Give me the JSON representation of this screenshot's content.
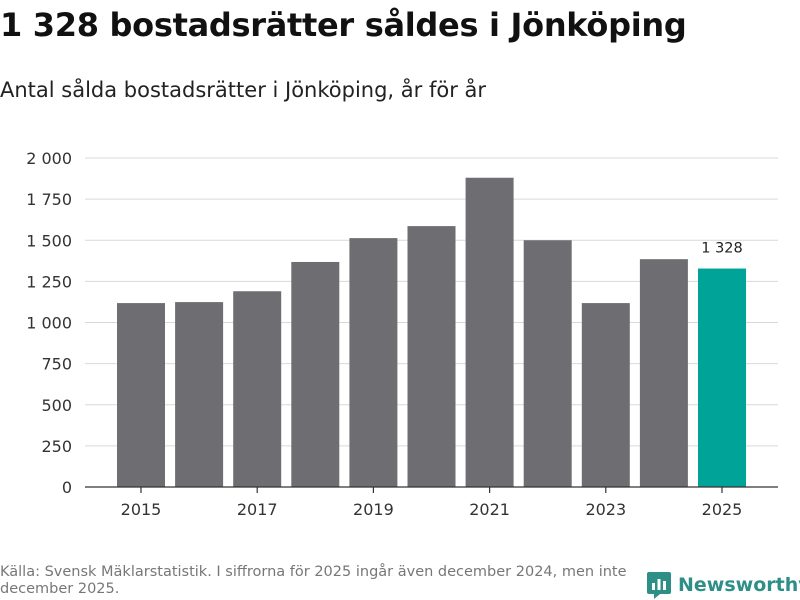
{
  "title": "1 328 bostadsrätter såldes i Jönköping",
  "subtitle": "Antal sålda bostadsrätter i Jönköping, år för år",
  "source": "Källa: Svensk Mäklarstatistik. I siffrorna för 2025 ingår även december 2024, men inte december 2025.",
  "brand": {
    "name": "Newsworthy",
    "icon": "newsworthy-logo-icon"
  },
  "colors": {
    "bar": "#6e6d72",
    "highlight": "#00a398",
    "grid": "#d9d9d9",
    "axis": "#333333"
  },
  "chart_data": {
    "type": "bar",
    "title": "1 328 bostadsrätter såldes i Jönköping",
    "subtitle": "Antal sålda bostadsrätter i Jönköping, år för år",
    "xlabel": "",
    "ylabel": "",
    "categories": [
      "2015",
      "2016",
      "2017",
      "2018",
      "2019",
      "2020",
      "2021",
      "2022",
      "2023",
      "2024",
      "2025"
    ],
    "values": [
      1118,
      1124,
      1190,
      1368,
      1513,
      1586,
      1880,
      1500,
      1118,
      1385,
      1328
    ],
    "x_tick_labels": [
      "2015",
      "2017",
      "2019",
      "2021",
      "2023",
      "2025"
    ],
    "y_ticks": [
      0,
      250,
      500,
      750,
      1000,
      1250,
      1500,
      1750,
      2000
    ],
    "y_tick_labels": [
      "0",
      "250",
      "500",
      "750",
      "1 000",
      "1 250",
      "1 500",
      "1 750",
      "2 000"
    ],
    "ylim": [
      0,
      2000
    ],
    "highlight_category": "2025",
    "annotation": {
      "category": "2025",
      "text": "1 328"
    },
    "grid": true
  }
}
